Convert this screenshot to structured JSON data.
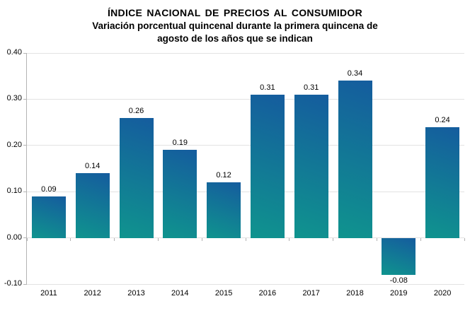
{
  "header": {
    "title": "ÍNDICE NACIONAL DE PRECIOS AL CONSUMIDOR",
    "subtitle_line1": "Variación porcentual quincenal durante la primera quincena de",
    "subtitle_line2": "agosto de los años que se indican"
  },
  "chart_data": {
    "type": "bar",
    "title": "ÍNDICE NACIONAL DE PRECIOS AL CONSUMIDOR",
    "subtitle": "Variación porcentual quincenal durante la primera quincena de agosto de los años que se indican",
    "categories": [
      "2011",
      "2012",
      "2013",
      "2014",
      "2015",
      "2016",
      "2017",
      "2018",
      "2019",
      "2020"
    ],
    "values": [
      0.09,
      0.14,
      0.26,
      0.19,
      0.12,
      0.31,
      0.31,
      0.34,
      -0.08,
      0.24
    ],
    "data_labels": [
      "0.09",
      "0.14",
      "0.26",
      "0.19",
      "0.12",
      "0.31",
      "0.31",
      "0.34",
      "-0.08",
      "0.24"
    ],
    "xlabel": "",
    "ylabel": "",
    "ylim": [
      -0.1,
      0.4
    ],
    "y_ticks": [
      "0.40",
      "0.30",
      "0.20",
      "0.10",
      "0.00",
      "-0.10"
    ],
    "grid": true,
    "legend": false,
    "colors": {
      "bar_gradient_top": "#155c9e",
      "bar_gradient_bottom": "#0f948e",
      "gridline": "#e2e2e2",
      "axis": "#b3b3b3",
      "text": "#000000",
      "background": "#ffffff"
    }
  }
}
